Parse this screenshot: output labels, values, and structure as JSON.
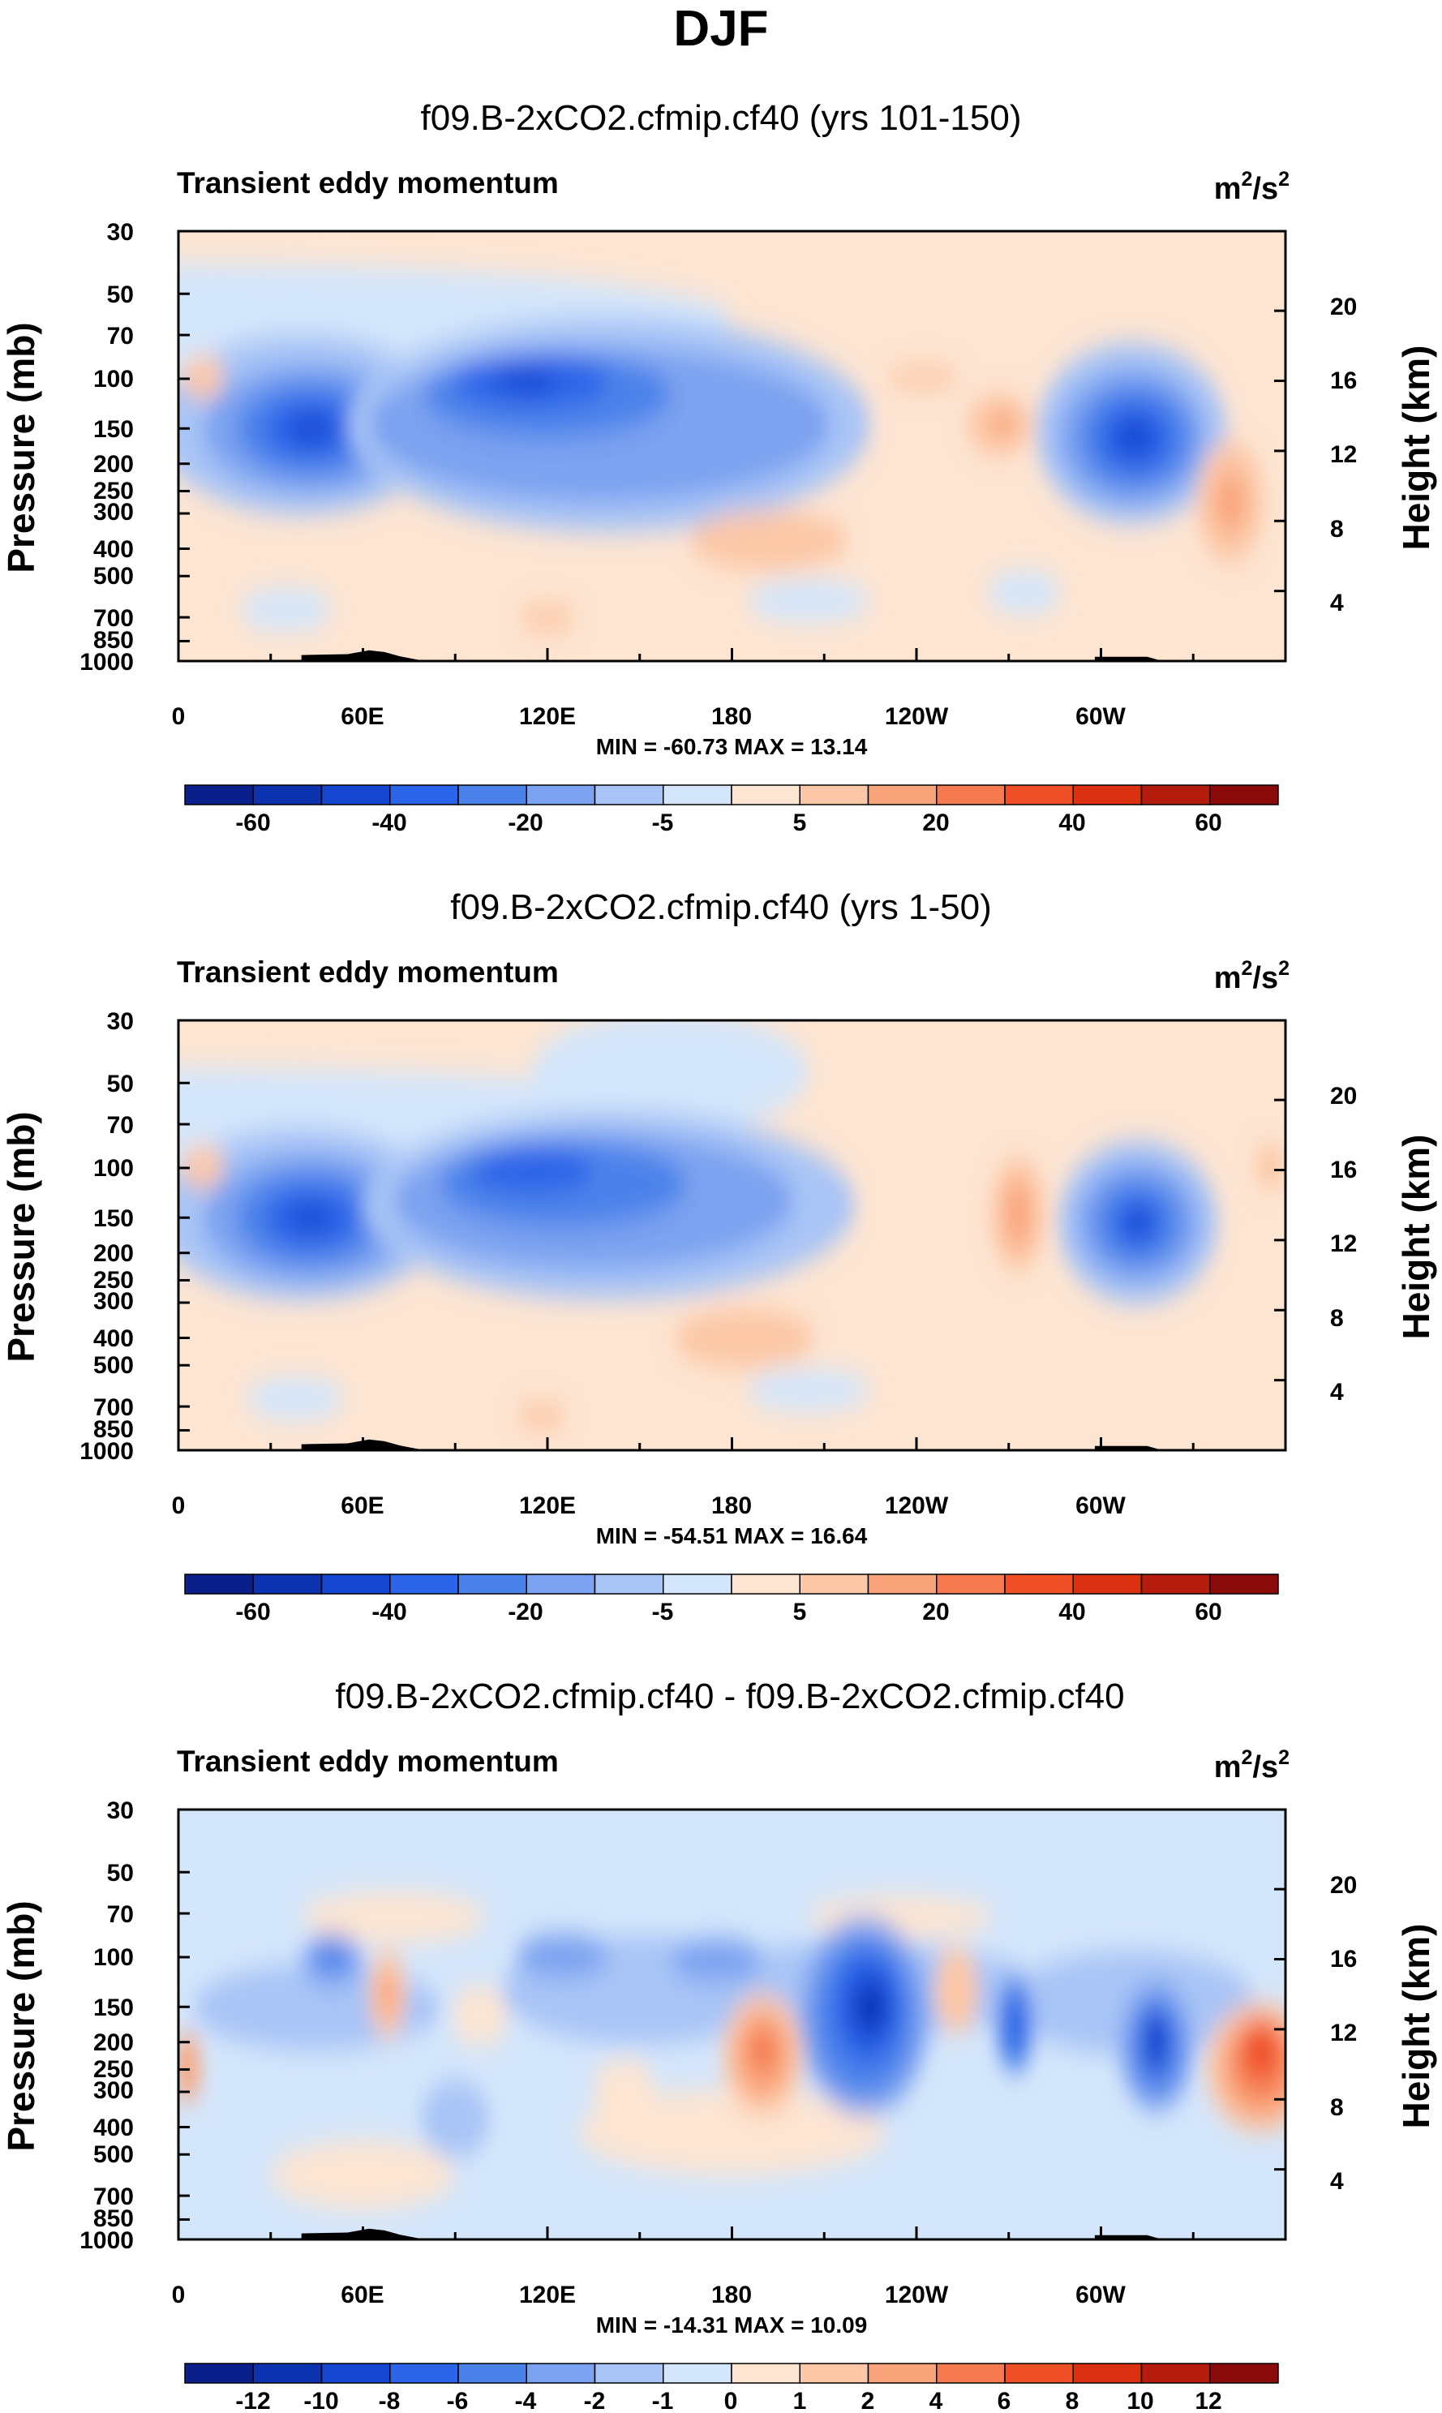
{
  "figure": {
    "title": "DJF"
  },
  "chart_data": [
    {
      "type": "heatmap",
      "title": "f09.B-2xCO2.cfmip.cf40 (yrs 101-150)",
      "subtitle": "Transient eddy momentum",
      "units": "m²/s²",
      "units_base": "m",
      "units_mid": "2",
      "units_tail": "/s",
      "units_sup": "2",
      "ylabel": "Pressure (mb)",
      "ylabel_right": "Height (km)",
      "yticks": [
        "30",
        "50",
        "70",
        "100",
        "150",
        "200",
        "250",
        "300",
        "400",
        "500",
        "700",
        "850",
        "1000"
      ],
      "yticks_right": [
        "20",
        "16",
        "12",
        "8",
        "4"
      ],
      "xticks": [
        "0",
        "60E",
        "120E",
        "180",
        "120W",
        "60W"
      ],
      "stats": "MIN = -60.73   MAX = 13.14",
      "colorbar_ticks": [
        "-60",
        "-40",
        "-20",
        "-5",
        "5",
        "20",
        "40",
        "60"
      ],
      "colorbar_colors": [
        "#0a1e8c",
        "#0c32b0",
        "#1446d2",
        "#2a64e8",
        "#4b82ea",
        "#7ba2f0",
        "#a8c4f6",
        "#d4e6fb",
        "#fde5d2",
        "#fcc7a6",
        "#f9a47a",
        "#f57a4f",
        "#ef4f27",
        "#db3012",
        "#b61c0d",
        "#8b0a0a"
      ],
      "field": {
        "background": "#fde5d2",
        "features": [
          {
            "lon": 0,
            "lev": 0.2,
            "wlon": 360,
            "wlev": 0.25,
            "color": "#d4e6fb"
          },
          {
            "lon": 40,
            "lev": 0.45,
            "wlon": 95,
            "wlev": 0.42,
            "color": "#a8c4f6"
          },
          {
            "lon": 43,
            "lev": 0.46,
            "wlon": 70,
            "wlev": 0.3,
            "color": "#7ba2f0"
          },
          {
            "lon": 43,
            "lev": 0.46,
            "wlon": 48,
            "wlev": 0.22,
            "color": "#4b82ea"
          },
          {
            "lon": 43,
            "lev": 0.46,
            "wlon": 30,
            "wlev": 0.14,
            "color": "#2a64e8"
          },
          {
            "lon": 43,
            "lev": 0.46,
            "wlon": 14,
            "wlev": 0.06,
            "color": "#1446d2"
          },
          {
            "lon": 140,
            "lev": 0.45,
            "wlon": 170,
            "wlev": 0.5,
            "color": "#a8c4f6"
          },
          {
            "lon": 137,
            "lev": 0.45,
            "wlon": 150,
            "wlev": 0.36,
            "color": "#7ba2f0"
          },
          {
            "lon": 120,
            "lev": 0.38,
            "wlon": 80,
            "wlev": 0.2,
            "color": "#4b82ea"
          },
          {
            "lon": 115,
            "lev": 0.35,
            "wlon": 50,
            "wlev": 0.12,
            "color": "#2a64e8"
          },
          {
            "lon": 113,
            "lev": 0.35,
            "wlon": 20,
            "wlev": 0.05,
            "color": "#1446d2"
          },
          {
            "lon": 310,
            "lev": 0.47,
            "wlon": 62,
            "wlev": 0.42,
            "color": "#a8c4f6"
          },
          {
            "lon": 310,
            "lev": 0.48,
            "wlon": 48,
            "wlev": 0.32,
            "color": "#7ba2f0"
          },
          {
            "lon": 311,
            "lev": 0.48,
            "wlon": 36,
            "wlev": 0.24,
            "color": "#4b82ea"
          },
          {
            "lon": 311,
            "lev": 0.48,
            "wlon": 24,
            "wlev": 0.16,
            "color": "#2a64e8"
          },
          {
            "lon": 311,
            "lev": 0.48,
            "wlon": 12,
            "wlev": 0.08,
            "color": "#1446d2"
          },
          {
            "lon": 192,
            "lev": 0.72,
            "wlon": 52,
            "wlev": 0.14,
            "color": "#fcc7a6"
          },
          {
            "lon": 267,
            "lev": 0.45,
            "wlon": 22,
            "wlev": 0.14,
            "color": "#fcc7a6"
          },
          {
            "lon": 268,
            "lev": 0.45,
            "wlon": 8,
            "wlev": 0.06,
            "color": "#f9a47a"
          },
          {
            "lon": 342,
            "lev": 0.63,
            "wlon": 22,
            "wlev": 0.28,
            "color": "#fcc7a6"
          },
          {
            "lon": 342,
            "lev": 0.63,
            "wlon": 10,
            "wlev": 0.14,
            "color": "#f9a47a"
          },
          {
            "lon": 8,
            "lev": 0.34,
            "wlon": 14,
            "wlev": 0.1,
            "color": "#fcc7a6"
          },
          {
            "lon": 242,
            "lev": 0.34,
            "wlon": 24,
            "wlev": 0.05,
            "color": "#fcc7a6"
          },
          {
            "lon": 205,
            "lev": 0.86,
            "wlon": 40,
            "wlev": 0.1,
            "color": "#d4e6fb"
          },
          {
            "lon": 35,
            "lev": 0.88,
            "wlon": 30,
            "wlev": 0.1,
            "color": "#d4e6fb"
          },
          {
            "lon": 275,
            "lev": 0.84,
            "wlon": 24,
            "wlev": 0.1,
            "color": "#d4e6fb"
          },
          {
            "lon": 120,
            "lev": 0.9,
            "wlon": 18,
            "wlev": 0.06,
            "color": "#fcc7a6"
          }
        ]
      }
    },
    {
      "type": "heatmap",
      "title": "f09.B-2xCO2.cfmip.cf40 (yrs 1-50)",
      "subtitle": "Transient eddy momentum",
      "units": "m²/s²",
      "units_base": "m",
      "units_mid": "2",
      "units_tail": "/s",
      "units_sup": "2",
      "ylabel": "Pressure (mb)",
      "ylabel_right": "Height (km)",
      "yticks": [
        "30",
        "50",
        "70",
        "100",
        "150",
        "200",
        "250",
        "300",
        "400",
        "500",
        "700",
        "850",
        "1000"
      ],
      "yticks_right": [
        "20",
        "16",
        "12",
        "8",
        "4"
      ],
      "xticks": [
        "0",
        "60E",
        "120E",
        "180",
        "120W",
        "60W"
      ],
      "stats": "MIN = -54.51   MAX = 16.64",
      "colorbar_ticks": [
        "-60",
        "-40",
        "-20",
        "-5",
        "5",
        "20",
        "40",
        "60"
      ],
      "colorbar_colors": [
        "#0a1e8c",
        "#0c32b0",
        "#1446d2",
        "#2a64e8",
        "#4b82ea",
        "#7ba2f0",
        "#a8c4f6",
        "#d4e6fb",
        "#fde5d2",
        "#fcc7a6",
        "#f9a47a",
        "#f57a4f",
        "#ef4f27",
        "#db3012",
        "#b61c0d",
        "#8b0a0a"
      ],
      "field": {
        "background": "#fde5d2",
        "features": [
          {
            "lon": 0,
            "lev": 0.22,
            "wlon": 360,
            "wlev": 0.22,
            "color": "#d4e6fb"
          },
          {
            "lon": 160,
            "lev": 0.12,
            "wlon": 90,
            "wlev": 0.28,
            "color": "#d4e6fb"
          },
          {
            "lon": 40,
            "lev": 0.45,
            "wlon": 95,
            "wlev": 0.4,
            "color": "#a8c4f6"
          },
          {
            "lon": 43,
            "lev": 0.46,
            "wlon": 70,
            "wlev": 0.3,
            "color": "#7ba2f0"
          },
          {
            "lon": 43,
            "lev": 0.46,
            "wlon": 48,
            "wlev": 0.22,
            "color": "#4b82ea"
          },
          {
            "lon": 43,
            "lev": 0.46,
            "wlon": 30,
            "wlev": 0.14,
            "color": "#2a64e8"
          },
          {
            "lon": 43,
            "lev": 0.46,
            "wlon": 14,
            "wlev": 0.05,
            "color": "#1446d2"
          },
          {
            "lon": 140,
            "lev": 0.43,
            "wlon": 160,
            "wlev": 0.44,
            "color": "#a8c4f6"
          },
          {
            "lon": 135,
            "lev": 0.42,
            "wlon": 130,
            "wlev": 0.32,
            "color": "#7ba2f0"
          },
          {
            "lon": 125,
            "lev": 0.38,
            "wlon": 80,
            "wlev": 0.2,
            "color": "#4b82ea"
          },
          {
            "lon": 115,
            "lev": 0.35,
            "wlon": 40,
            "wlev": 0.1,
            "color": "#2a64e8"
          },
          {
            "lon": 312,
            "lev": 0.47,
            "wlon": 52,
            "wlev": 0.38,
            "color": "#a8c4f6"
          },
          {
            "lon": 312,
            "lev": 0.47,
            "wlon": 40,
            "wlev": 0.28,
            "color": "#7ba2f0"
          },
          {
            "lon": 312,
            "lev": 0.47,
            "wlon": 28,
            "wlev": 0.2,
            "color": "#4b82ea"
          },
          {
            "lon": 312,
            "lev": 0.47,
            "wlon": 16,
            "wlev": 0.12,
            "color": "#2a64e8"
          },
          {
            "lon": 312,
            "lev": 0.47,
            "wlon": 8,
            "wlev": 0.06,
            "color": "#1446d2"
          },
          {
            "lon": 184,
            "lev": 0.74,
            "wlon": 46,
            "wlev": 0.14,
            "color": "#fcc7a6"
          },
          {
            "lon": 273,
            "lev": 0.45,
            "wlon": 18,
            "wlev": 0.26,
            "color": "#fcc7a6"
          },
          {
            "lon": 273,
            "lev": 0.45,
            "wlon": 8,
            "wlev": 0.16,
            "color": "#f9a47a"
          },
          {
            "lon": 8,
            "lev": 0.34,
            "wlon": 14,
            "wlev": 0.1,
            "color": "#fcc7a6"
          },
          {
            "lon": 355,
            "lev": 0.34,
            "wlon": 10,
            "wlev": 0.1,
            "color": "#fcc7a6"
          },
          {
            "lon": 205,
            "lev": 0.86,
            "wlon": 40,
            "wlev": 0.1,
            "color": "#d4e6fb"
          },
          {
            "lon": 38,
            "lev": 0.88,
            "wlon": 32,
            "wlev": 0.1,
            "color": "#d4e6fb"
          },
          {
            "lon": 118,
            "lev": 0.92,
            "wlon": 16,
            "wlev": 0.06,
            "color": "#fcc7a6"
          }
        ]
      }
    },
    {
      "type": "heatmap",
      "title": "f09.B-2xCO2.cfmip.cf40 - f09.B-2xCO2.cfmip.cf40",
      "subtitle": "Transient eddy momentum",
      "units": "m²/s²",
      "units_base": "m",
      "units_mid": "2",
      "units_tail": "/s",
      "units_sup": "2",
      "ylabel": "Pressure (mb)",
      "ylabel_right": "Height (km)",
      "yticks": [
        "30",
        "50",
        "70",
        "100",
        "150",
        "200",
        "250",
        "300",
        "400",
        "500",
        "700",
        "850",
        "1000"
      ],
      "yticks_right": [
        "20",
        "16",
        "12",
        "8",
        "4"
      ],
      "xticks": [
        "0",
        "60E",
        "120E",
        "180",
        "120W",
        "60W"
      ],
      "stats": "MIN = -14.31   MAX = 10.09",
      "colorbar_ticks": [
        "-12",
        "-10",
        "-8",
        "-6",
        "-4",
        "-2",
        "-1",
        "0",
        "1",
        "2",
        "4",
        "6",
        "8",
        "10",
        "12"
      ],
      "colorbar_colors": [
        "#0a1e8c",
        "#0c32b0",
        "#1446d2",
        "#2a64e8",
        "#4b82ea",
        "#7ba2f0",
        "#a8c4f6",
        "#d4e6fb",
        "#fde5d2",
        "#fcc7a6",
        "#f9a47a",
        "#f57a4f",
        "#ef4f27",
        "#db3012",
        "#b61c0d",
        "#8b0a0a"
      ],
      "field": {
        "background": "#d4e6fb",
        "features": [
          {
            "lon": 70,
            "lev": 0.25,
            "wlon": 60,
            "wlev": 0.12,
            "color": "#fde5d2"
          },
          {
            "lon": 180,
            "lev": 0.75,
            "wlon": 100,
            "wlev": 0.2,
            "color": "#fde5d2"
          },
          {
            "lon": 60,
            "lev": 0.85,
            "wlon": 60,
            "wlev": 0.16,
            "color": "#fde5d2"
          },
          {
            "lon": 235,
            "lev": 0.25,
            "wlon": 60,
            "wlev": 0.1,
            "color": "#fde5d2"
          },
          {
            "lon": 150,
            "lev": 0.42,
            "wlon": 90,
            "wlev": 0.25,
            "color": "#a8c4f6"
          },
          {
            "lon": 220,
            "lev": 0.42,
            "wlon": 120,
            "wlev": 0.22,
            "color": "#a8c4f6"
          },
          {
            "lon": 45,
            "lev": 0.46,
            "wlon": 80,
            "wlev": 0.2,
            "color": "#a8c4f6"
          },
          {
            "lon": 310,
            "lev": 0.45,
            "wlon": 80,
            "wlev": 0.24,
            "color": "#a8c4f6"
          },
          {
            "lon": 90,
            "lev": 0.72,
            "wlon": 22,
            "wlev": 0.18,
            "color": "#a8c4f6"
          },
          {
            "lon": 50,
            "lev": 0.35,
            "wlon": 20,
            "wlev": 0.12,
            "color": "#7ba2f0"
          },
          {
            "lon": 50,
            "lev": 0.34,
            "wlon": 10,
            "wlev": 0.07,
            "color": "#4b82ea"
          },
          {
            "lon": 125,
            "lev": 0.34,
            "wlon": 30,
            "wlev": 0.1,
            "color": "#7ba2f0"
          },
          {
            "lon": 175,
            "lev": 0.35,
            "wlon": 30,
            "wlev": 0.1,
            "color": "#7ba2f0"
          },
          {
            "lon": 223,
            "lev": 0.48,
            "wlon": 42,
            "wlev": 0.46,
            "color": "#7ba2f0"
          },
          {
            "lon": 223,
            "lev": 0.48,
            "wlon": 32,
            "wlev": 0.36,
            "color": "#4b82ea"
          },
          {
            "lon": 224,
            "lev": 0.46,
            "wlon": 22,
            "wlev": 0.26,
            "color": "#2a64e8"
          },
          {
            "lon": 225,
            "lev": 0.46,
            "wlon": 14,
            "wlev": 0.16,
            "color": "#1446d2"
          },
          {
            "lon": 225,
            "lev": 0.46,
            "wlon": 7,
            "wlev": 0.08,
            "color": "#0c32b0"
          },
          {
            "lon": 272,
            "lev": 0.5,
            "wlon": 12,
            "wlev": 0.22,
            "color": "#4b82ea"
          },
          {
            "lon": 272,
            "lev": 0.5,
            "wlon": 6,
            "wlev": 0.12,
            "color": "#2a64e8"
          },
          {
            "lon": 318,
            "lev": 0.55,
            "wlon": 24,
            "wlev": 0.3,
            "color": "#7ba2f0"
          },
          {
            "lon": 318,
            "lev": 0.55,
            "wlon": 16,
            "wlev": 0.22,
            "color": "#4b82ea"
          },
          {
            "lon": 318,
            "lev": 0.54,
            "wlon": 9,
            "wlev": 0.14,
            "color": "#1446d2"
          },
          {
            "lon": 190,
            "lev": 0.57,
            "wlon": 26,
            "wlev": 0.28,
            "color": "#fcc7a6"
          },
          {
            "lon": 190,
            "lev": 0.57,
            "wlon": 18,
            "wlev": 0.2,
            "color": "#f9a47a"
          },
          {
            "lon": 190,
            "lev": 0.56,
            "wlon": 9,
            "wlev": 0.1,
            "color": "#f57a4f"
          },
          {
            "lon": 352,
            "lev": 0.6,
            "wlon": 36,
            "wlev": 0.3,
            "color": "#fcc7a6"
          },
          {
            "lon": 352,
            "lev": 0.6,
            "wlon": 26,
            "wlev": 0.24,
            "color": "#f9a47a"
          },
          {
            "lon": 352,
            "lev": 0.58,
            "wlon": 18,
            "wlev": 0.18,
            "color": "#f57a4f"
          },
          {
            "lon": 352,
            "lev": 0.56,
            "wlon": 10,
            "wlev": 0.12,
            "color": "#ef4f27"
          },
          {
            "lon": 68,
            "lev": 0.43,
            "wlon": 12,
            "wlev": 0.2,
            "color": "#fcc7a6"
          },
          {
            "lon": 68,
            "lev": 0.43,
            "wlon": 6,
            "wlev": 0.1,
            "color": "#f9a47a"
          },
          {
            "lon": 253,
            "lev": 0.42,
            "wlon": 14,
            "wlev": 0.2,
            "color": "#fcc7a6"
          },
          {
            "lon": 3,
            "lev": 0.6,
            "wlon": 8,
            "wlev": 0.16,
            "color": "#f9a47a"
          },
          {
            "lon": 98,
            "lev": 0.48,
            "wlon": 18,
            "wlev": 0.14,
            "color": "#fde5d2"
          },
          {
            "lon": 145,
            "lev": 0.65,
            "wlon": 20,
            "wlev": 0.14,
            "color": "#fde5d2"
          }
        ]
      }
    }
  ]
}
